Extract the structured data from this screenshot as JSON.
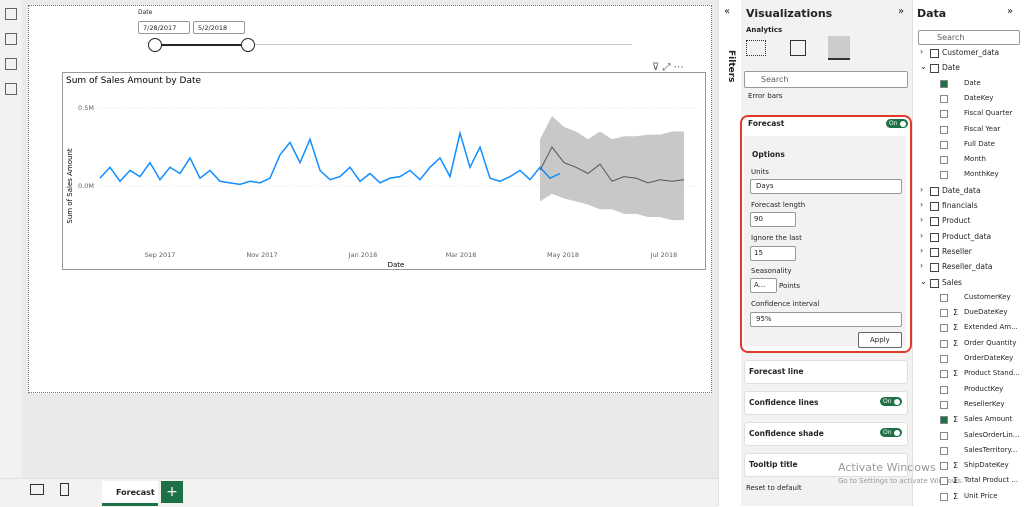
{
  "canvas": {
    "slicer": {
      "label": "Date",
      "start": "7/28/2017",
      "end": "5/2/2018"
    },
    "visual": {
      "title": "Sum of Sales Amount by Date",
      "y_label": "Sum of Sales Amount",
      "x_label": "Date",
      "ylim": [
        -0.38,
        0.63
      ],
      "yticks": [
        {
          "value": 0,
          "label": "0.0M"
        },
        {
          "value": 0.5,
          "label": "0.5M"
        }
      ],
      "xtick_labels": [
        "Sep 2017",
        "Nov 2017",
        "Jan 2018",
        "Mar 2018",
        "May 2018",
        "Jul 2018"
      ],
      "actual": {
        "color": "#118DFF",
        "values": [
          0.05,
          0.12,
          0.03,
          0.1,
          0.06,
          0.15,
          0.04,
          0.12,
          0.08,
          0.18,
          0.05,
          0.1,
          0.03,
          0.02,
          0.01,
          0.03,
          0.02,
          0.05,
          0.2,
          0.28,
          0.15,
          0.3,
          0.1,
          0.04,
          0.06,
          0.12,
          0.03,
          0.08,
          0.02,
          0.05,
          0.06,
          0.1,
          0.04,
          0.12,
          0.18,
          0.06,
          0.34,
          0.12,
          0.25,
          0.05,
          0.03,
          0.06,
          0.1,
          0.04,
          0.12,
          0.05,
          0.08
        ]
      },
      "forecast": {
        "color": "#555555",
        "shade": "#c8c8c8",
        "values": [
          0.1,
          0.25,
          0.15,
          0.12,
          0.08,
          0.14,
          0.03,
          0.06,
          0.05,
          0.02,
          0.04,
          0.03,
          0.04
        ],
        "lower": [
          -0.1,
          -0.05,
          -0.08,
          -0.1,
          -0.12,
          -0.15,
          -0.15,
          -0.18,
          -0.18,
          -0.2,
          -0.2,
          -0.22,
          -0.22
        ],
        "upper": [
          0.3,
          0.45,
          0.38,
          0.35,
          0.3,
          0.35,
          0.3,
          0.32,
          0.32,
          0.33,
          0.33,
          0.35,
          0.35
        ]
      }
    }
  },
  "filters": {
    "label": "Filters"
  },
  "visualizations": {
    "title": "Visualizations",
    "tab": "Analytics",
    "search": "Search",
    "error_bars": "Error bars",
    "forecast": {
      "title": "Forecast",
      "toggle": "On",
      "options": "Options",
      "units_label": "Units",
      "units": "Days",
      "length_label": "Forecast length",
      "length": "90",
      "ignore_label": "Ignore the last",
      "ignore": "15",
      "seasonality_label": "Seasonality",
      "seasonality": "A...",
      "points": "Points",
      "ci_label": "Confidence interval",
      "ci": "95%",
      "apply": "Apply"
    },
    "sections": [
      {
        "title": "Forecast line"
      },
      {
        "title": "Confidence lines",
        "toggle": "On"
      },
      {
        "title": "Confidence shade",
        "toggle": "On"
      },
      {
        "title": "Tooltip title"
      }
    ],
    "reset": "Reset to default"
  },
  "data_pane": {
    "title": "Data",
    "search": "Search",
    "items": [
      {
        "label": "Customer_data",
        "kind": "table"
      },
      {
        "label": "Date",
        "kind": "table",
        "expanded": true
      },
      {
        "label": "Date",
        "kind": "field",
        "checked": true
      },
      {
        "label": "DateKey",
        "kind": "field"
      },
      {
        "label": "Fiscal Quarter",
        "kind": "field"
      },
      {
        "label": "Fiscal Year",
        "kind": "field"
      },
      {
        "label": "Full Date",
        "kind": "field"
      },
      {
        "label": "Month",
        "kind": "field"
      },
      {
        "label": "MonthKey",
        "kind": "field"
      },
      {
        "label": "Date_data",
        "kind": "table"
      },
      {
        "label": "financials",
        "kind": "table"
      },
      {
        "label": "Product",
        "kind": "table"
      },
      {
        "label": "Product_data",
        "kind": "table"
      },
      {
        "label": "Reseller",
        "kind": "table"
      },
      {
        "label": "Reseller_data",
        "kind": "table"
      },
      {
        "label": "Sales",
        "kind": "table",
        "expanded": true
      },
      {
        "label": "CustomerKey",
        "kind": "field"
      },
      {
        "label": "DueDateKey",
        "kind": "field",
        "sigma": true
      },
      {
        "label": "Extended Am...",
        "kind": "field",
        "sigma": true
      },
      {
        "label": "Order Quantity",
        "kind": "field",
        "sigma": true
      },
      {
        "label": "OrderDateKey",
        "kind": "field"
      },
      {
        "label": "Product Stand...",
        "kind": "field",
        "sigma": true
      },
      {
        "label": "ProductKey",
        "kind": "field"
      },
      {
        "label": "ResellerKey",
        "kind": "field"
      },
      {
        "label": "Sales Amount",
        "kind": "field",
        "sigma": true,
        "checked": true
      },
      {
        "label": "SalesOrderLin...",
        "kind": "field"
      },
      {
        "label": "SalesTerritory...",
        "kind": "field"
      },
      {
        "label": "ShipDateKey",
        "kind": "field",
        "sigma": true
      },
      {
        "label": "Total Product ...",
        "kind": "field",
        "sigma": true
      },
      {
        "label": "Unit Price",
        "kind": "field",
        "sigma": true
      }
    ]
  },
  "page_tab": "Forecast",
  "watermark": {
    "title": "Activate Windows",
    "subtitle": "Go to Settings to activate Windows."
  }
}
